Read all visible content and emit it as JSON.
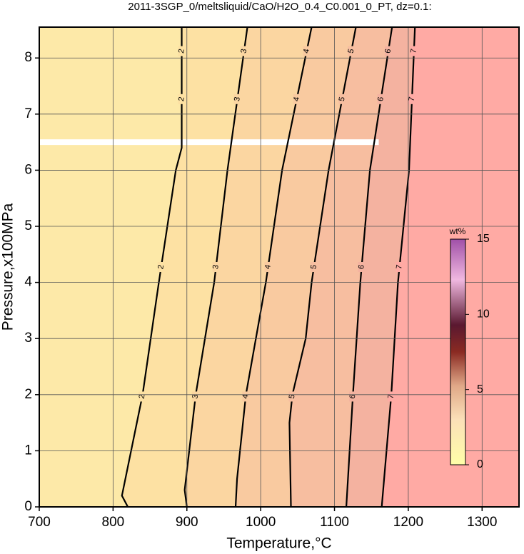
{
  "chart_data": {
    "type": "contour",
    "title": "2011-3SGP_0/meltsliquid/CaO/H2O_0.4_C0.001_0_PT, dz=0.1:",
    "x_label": "Temperature,°C",
    "y_label": "Pressure,x100MPa",
    "xlim": [
      700,
      1350
    ],
    "xticks": [
      700,
      800,
      900,
      1000,
      1100,
      1200,
      1300
    ],
    "ylim": [
      0,
      8.55
    ],
    "yticks": [
      0,
      1,
      2,
      3,
      4,
      5,
      6,
      7,
      8
    ],
    "grid": true,
    "background": "#fde9a8",
    "contours": [
      {
        "label": "2",
        "fill": "#fde1a3",
        "temperature": [
          820,
          812,
          840,
          862,
          885,
          893,
          893
        ],
        "pressure": [
          0,
          0.2,
          2,
          4,
          6,
          6.4,
          8.55
        ]
      },
      {
        "label": "3",
        "fill": "#fbd6a1",
        "temperature": [
          900,
          897,
          912,
          937,
          955,
          982
        ],
        "pressure": [
          0,
          0.3,
          2,
          4,
          6,
          8.55
        ]
      },
      {
        "label": "4",
        "fill": "#f9caa0",
        "temperature": [
          966,
          968,
          980,
          1007,
          1029,
          1069
        ],
        "pressure": [
          0,
          0.5,
          2,
          4,
          6,
          8.55
        ]
      },
      {
        "label": "5",
        "fill": "#f7bea0",
        "temperature": [
          1041,
          1039,
          1043,
          1061,
          1069,
          1092,
          1129
        ],
        "pressure": [
          0,
          1.5,
          2,
          3,
          4,
          6,
          8.55
        ]
      },
      {
        "label": "6",
        "fill": "#f4b2a0",
        "temperature": [
          1116,
          1125,
          1135,
          1148,
          1178
        ],
        "pressure": [
          0,
          2,
          4,
          6,
          8.55
        ]
      },
      {
        "label": "7",
        "fill": "#ffaaa4",
        "temperature": [
          1164,
          1177,
          1186,
          1201,
          1209
        ],
        "pressure": [
          0,
          2,
          4,
          6,
          8.55
        ]
      }
    ],
    "mask_band": {
      "pressure": 6.5,
      "temperature": [
        700,
        1160
      ]
    },
    "colorbar": {
      "label": "wt%",
      "lim": [
        0,
        15
      ],
      "ticks": [
        0,
        5,
        10,
        15
      ]
    }
  }
}
